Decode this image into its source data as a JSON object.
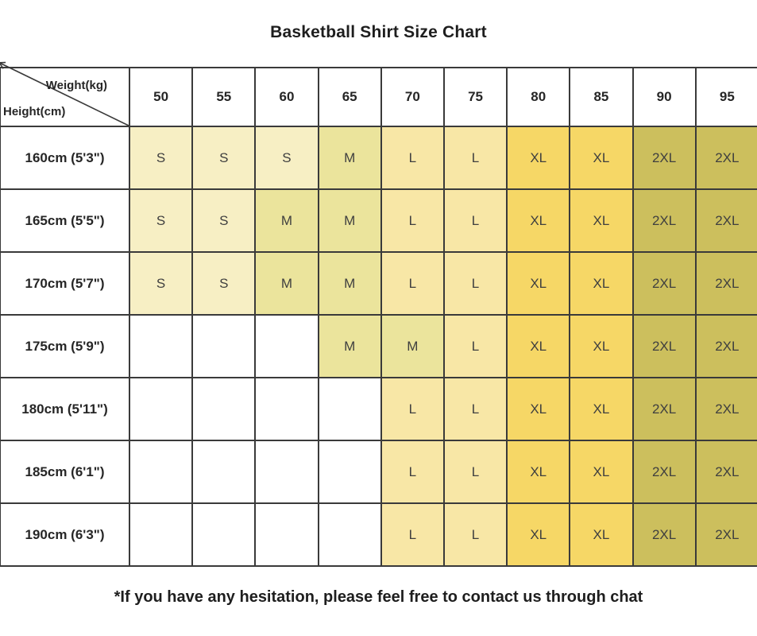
{
  "title": "Basketball Shirt Size Chart",
  "footer_note": "*If you have any hesitation, please feel free to contact us through chat",
  "chart_data": {
    "type": "table",
    "corner": {
      "top_label": "Weight(kg)",
      "bottom_label": "Height(cm)"
    },
    "weights_kg": [
      "50",
      "55",
      "60",
      "65",
      "70",
      "75",
      "80",
      "85",
      "90",
      "95"
    ],
    "rows": [
      {
        "height": "160cm (5'3\")",
        "sizes": [
          "S",
          "S",
          "S",
          "M",
          "L",
          "L",
          "XL",
          "XL",
          "2XL",
          "2XL"
        ]
      },
      {
        "height": "165cm (5'5\")",
        "sizes": [
          "S",
          "S",
          "M",
          "M",
          "L",
          "L",
          "XL",
          "XL",
          "2XL",
          "2XL"
        ]
      },
      {
        "height": "170cm (5'7\")",
        "sizes": [
          "S",
          "S",
          "M",
          "M",
          "L",
          "L",
          "XL",
          "XL",
          "2XL",
          "2XL"
        ]
      },
      {
        "height": "175cm (5'9\")",
        "sizes": [
          "",
          "",
          "",
          "M",
          "M",
          "L",
          "XL",
          "XL",
          "2XL",
          "2XL"
        ]
      },
      {
        "height": "180cm (5'11\")",
        "sizes": [
          "",
          "",
          "",
          "",
          "L",
          "L",
          "XL",
          "XL",
          "2XL",
          "2XL"
        ]
      },
      {
        "height": "185cm (6'1\")",
        "sizes": [
          "",
          "",
          "",
          "",
          "L",
          "L",
          "XL",
          "XL",
          "2XL",
          "2XL"
        ]
      },
      {
        "height": "190cm (6'3\")",
        "sizes": [
          "",
          "",
          "",
          "",
          "L",
          "L",
          "XL",
          "XL",
          "2XL",
          "2XL"
        ]
      }
    ],
    "size_colors": {
      "S": "#f7efc4",
      "M": "#ebe49c",
      "L": "#f8e7a6",
      "XL": "#f6d766",
      "2XL": "#ccbf5d",
      "": "#ffffff"
    },
    "border_color": "#3a3a3a"
  }
}
